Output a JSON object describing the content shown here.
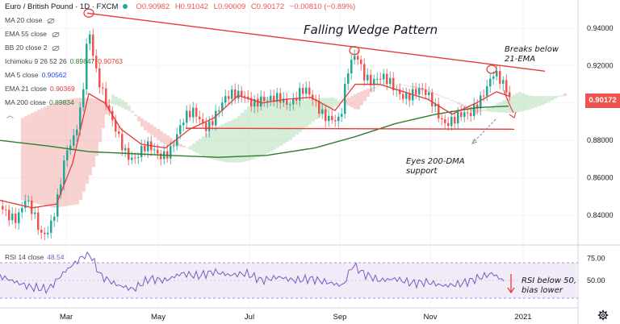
{
  "header": {
    "title": "Euro / British Pound · 1D · FXCM",
    "open": "O0.90982",
    "high": "H0.91042",
    "low": "L0.90009",
    "close": "C0.90172",
    "change": "−0.00810 (−0.89%)"
  },
  "legend": {
    "ma20": {
      "label": "MA 20 close",
      "value": ""
    },
    "ema55": {
      "label": "EMA 55 close",
      "value": ""
    },
    "bb20": {
      "label": "BB 20 close 2",
      "value": ""
    },
    "ichimoku": {
      "label": "Ichimoku 9 26 52 26",
      "v1": "0.89847",
      "v2": "0.90763"
    },
    "ma5": {
      "label": "MA 5 close",
      "value": "0.90562"
    },
    "ema21": {
      "label": "EMA 21 close",
      "value": "0.90369"
    },
    "ma200": {
      "label": "MA 200 close",
      "value": "0.89834"
    },
    "rsi": {
      "label": "RSI 14 close",
      "value": "48.54"
    }
  },
  "annotations": {
    "title": "Falling Wedge Pattern",
    "breaks1": "Breaks below",
    "breaks2": "21-EMA",
    "eyes1": "Eyes 200-DMA",
    "eyes2": "support",
    "rsi1": "RSI below 50,",
    "rsi2": "bias lower"
  },
  "price_tag": "0.90172",
  "colors": {
    "up": "#26a69a",
    "down": "#ef5350",
    "ema21": "#e53935",
    "ma200": "#2e7d32",
    "trendline": "#e53935",
    "rsi": "#7e57c2",
    "cloud_green": "#a5d6a7",
    "cloud_red": "#ef9a9a"
  },
  "chart_data": {
    "type": "candlestick",
    "symbol": "EURGBP",
    "y_ticks": [
      "0.94000",
      "0.92000",
      "0.90000",
      "0.88000",
      "0.86000",
      "0.84000"
    ],
    "x_ticks": [
      "Mar",
      "May",
      "Jul",
      "Sep",
      "Nov",
      "2021"
    ],
    "ylim": [
      0.825,
      0.955
    ],
    "rsi_ticks": [
      "75.00",
      "50.00"
    ],
    "rsi_band": [
      30,
      70
    ],
    "rsi_last": 48.54,
    "price_path": [
      [
        0,
        0.845
      ],
      [
        10,
        0.843
      ],
      [
        20,
        0.84
      ],
      [
        30,
        0.846
      ],
      [
        40,
        0.838
      ],
      [
        50,
        0.83
      ],
      [
        60,
        0.836
      ],
      [
        70,
        0.85
      ],
      [
        80,
        0.87
      ],
      [
        90,
        0.878
      ],
      [
        100,
        0.9
      ],
      [
        108,
        0.945
      ],
      [
        112,
        0.935
      ],
      [
        118,
        0.918
      ],
      [
        125,
        0.905
      ],
      [
        135,
        0.89
      ],
      [
        145,
        0.882
      ],
      [
        155,
        0.876
      ],
      [
        165,
        0.872
      ],
      [
        180,
        0.874
      ],
      [
        195,
        0.872
      ],
      [
        210,
        0.878
      ],
      [
        225,
        0.888
      ],
      [
        240,
        0.894
      ],
      [
        255,
        0.89
      ],
      [
        270,
        0.896
      ],
      [
        285,
        0.902
      ],
      [
        300,
        0.908
      ],
      [
        315,
        0.9
      ],
      [
        330,
        0.898
      ],
      [
        345,
        0.905
      ],
      [
        360,
        0.902
      ],
      [
        375,
        0.904
      ],
      [
        390,
        0.9
      ],
      [
        405,
        0.895
      ],
      [
        420,
        0.888
      ],
      [
        430,
        0.915
      ],
      [
        440,
        0.928
      ],
      [
        450,
        0.918
      ],
      [
        460,
        0.912
      ],
      [
        475,
        0.91
      ],
      [
        490,
        0.908
      ],
      [
        505,
        0.906
      ],
      [
        520,
        0.904
      ],
      [
        535,
        0.9
      ],
      [
        550,
        0.892
      ],
      [
        565,
        0.89
      ],
      [
        580,
        0.892
      ],
      [
        590,
        0.902
      ],
      [
        600,
        0.91
      ],
      [
        610,
        0.915
      ],
      [
        620,
        0.908
      ],
      [
        630,
        0.902
      ]
    ],
    "ema21_path": [
      [
        0,
        0.848
      ],
      [
        40,
        0.844
      ],
      [
        70,
        0.846
      ],
      [
        90,
        0.868
      ],
      [
        110,
        0.905
      ],
      [
        130,
        0.9
      ],
      [
        150,
        0.886
      ],
      [
        175,
        0.878
      ],
      [
        205,
        0.876
      ],
      [
        235,
        0.886
      ],
      [
        265,
        0.892
      ],
      [
        295,
        0.904
      ],
      [
        325,
        0.9
      ],
      [
        355,
        0.902
      ],
      [
        385,
        0.903
      ],
      [
        415,
        0.896
      ],
      [
        440,
        0.91
      ],
      [
        470,
        0.91
      ],
      [
        500,
        0.906
      ],
      [
        530,
        0.902
      ],
      [
        560,
        0.894
      ],
      [
        590,
        0.9
      ],
      [
        615,
        0.906
      ],
      [
        630,
        0.9037
      ]
    ],
    "ma200_path": [
      [
        0,
        0.88
      ],
      [
        60,
        0.877
      ],
      [
        110,
        0.874
      ],
      [
        160,
        0.873
      ],
      [
        210,
        0.872
      ],
      [
        270,
        0.871
      ],
      [
        330,
        0.872
      ],
      [
        390,
        0.876
      ],
      [
        440,
        0.882
      ],
      [
        490,
        0.889
      ],
      [
        540,
        0.894
      ],
      [
        590,
        0.8975
      ],
      [
        630,
        0.8983
      ]
    ],
    "trendline_upper": [
      [
        108,
        0.948
      ],
      [
        675,
        0.917
      ]
    ],
    "support_line": [
      [
        230,
        0.8865
      ],
      [
        637,
        0.886
      ]
    ],
    "rsi_path": [
      [
        0,
        55
      ],
      [
        20,
        48
      ],
      [
        40,
        42
      ],
      [
        60,
        40
      ],
      [
        80,
        60
      ],
      [
        100,
        75
      ],
      [
        110,
        82
      ],
      [
        125,
        55
      ],
      [
        145,
        45
      ],
      [
        165,
        40
      ],
      [
        185,
        52
      ],
      [
        205,
        50
      ],
      [
        225,
        58
      ],
      [
        245,
        55
      ],
      [
        265,
        60
      ],
      [
        285,
        56
      ],
      [
        305,
        58
      ],
      [
        325,
        50
      ],
      [
        345,
        54
      ],
      [
        365,
        50
      ],
      [
        385,
        52
      ],
      [
        405,
        48
      ],
      [
        425,
        44
      ],
      [
        437,
        68
      ],
      [
        450,
        58
      ],
      [
        470,
        50
      ],
      [
        490,
        52
      ],
      [
        510,
        47
      ],
      [
        530,
        48
      ],
      [
        550,
        44
      ],
      [
        570,
        46
      ],
      [
        590,
        52
      ],
      [
        610,
        58
      ],
      [
        625,
        48.5
      ]
    ]
  }
}
